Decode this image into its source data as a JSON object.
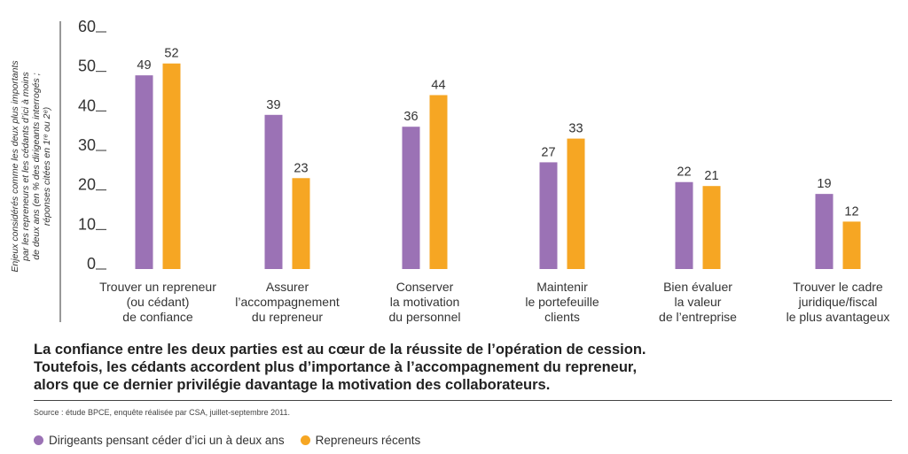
{
  "chart_data": {
    "type": "bar",
    "ylabel_lines": [
      "Enjeux considérés comme les deux plus importants",
      "par les repreneurs et les cédants d’ici à moins",
      "de deux ans (en % des dirigeants interrogés ;",
      "réponses citées en 1ʳᵉ ou 2ᵉ)"
    ],
    "ylim": [
      0,
      60
    ],
    "yticks": [
      "60",
      "50",
      "40",
      "30",
      "20",
      "10",
      "0"
    ],
    "ytick_values": [
      60,
      50,
      40,
      30,
      20,
      10,
      0
    ],
    "categories": [
      [
        "Trouver un repreneur",
        "(ou cédant)",
        "de confiance"
      ],
      [
        "Assurer",
        "l’accompagnement",
        "du repreneur"
      ],
      [
        "Conserver",
        "la motivation",
        "du personnel"
      ],
      [
        "Maintenir",
        "le portefeuille",
        "clients"
      ],
      [
        "Bien évaluer",
        "la valeur",
        "de l’entreprise"
      ],
      [
        "Trouver le cadre",
        "juridique/fiscal",
        "le plus avantageux"
      ]
    ],
    "series": [
      {
        "name": "Dirigeants pensant céder d’ici un à deux ans",
        "color": "#9b72b5",
        "values": [
          49,
          39,
          36,
          27,
          22,
          19
        ]
      },
      {
        "name": "Repreneurs récents",
        "color": "#f6a623",
        "values": [
          52,
          23,
          44,
          33,
          21,
          12
        ]
      }
    ],
    "grid": false,
    "legend_position": "bottom-left"
  },
  "caption": [
    "La confiance entre les deux parties est au cœur de la réussite de l’opération de cession.",
    "Toutefois, les cédants accordent plus d’importance à l’accompagnement du repreneur,",
    "alors que ce dernier privilégie davantage la motivation des collaborateurs."
  ],
  "source": "Source : étude BPCE, enquête réalisée par CSA, juillet-septembre 2011.",
  "legend": [
    {
      "label": "Dirigeants pensant céder d’ici un à deux ans",
      "color": "#9b72b5"
    },
    {
      "label": "Repreneurs récents",
      "color": "#f6a623"
    }
  ]
}
